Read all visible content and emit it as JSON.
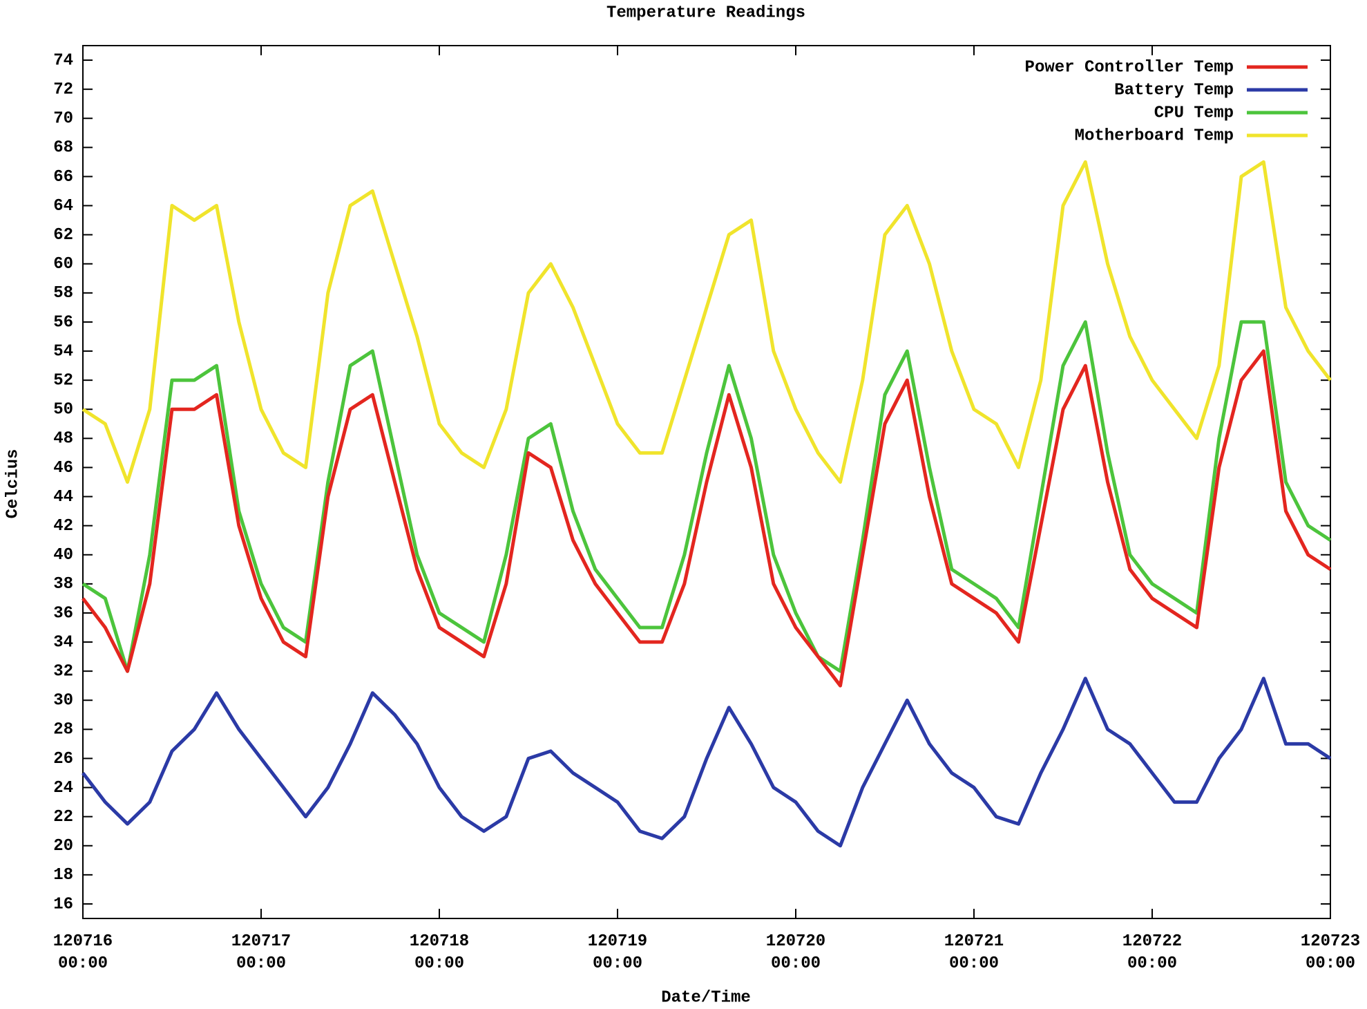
{
  "chart_data": {
    "type": "line",
    "title": "Temperature Readings",
    "x_label": "Date/Time",
    "y_label": "Celcius",
    "x": [
      "120716 00:00",
      "120716 03:00",
      "120716 06:00",
      "120716 09:00",
      "120716 12:00",
      "120716 15:00",
      "120716 18:00",
      "120716 21:00",
      "120717 00:00",
      "120717 03:00",
      "120717 06:00",
      "120717 09:00",
      "120717 12:00",
      "120717 15:00",
      "120717 18:00",
      "120717 21:00",
      "120718 00:00",
      "120718 03:00",
      "120718 06:00",
      "120718 09:00",
      "120718 12:00",
      "120718 15:00",
      "120718 18:00",
      "120718 21:00",
      "120719 00:00",
      "120719 03:00",
      "120719 06:00",
      "120719 09:00",
      "120719 12:00",
      "120719 15:00",
      "120719 18:00",
      "120719 21:00",
      "120720 00:00",
      "120720 03:00",
      "120720 06:00",
      "120720 09:00",
      "120720 12:00",
      "120720 15:00",
      "120720 18:00",
      "120720 21:00",
      "120721 00:00",
      "120721 03:00",
      "120721 06:00",
      "120721 09:00",
      "120721 12:00",
      "120721 15:00",
      "120721 18:00",
      "120721 21:00",
      "120722 00:00",
      "120722 03:00",
      "120722 06:00",
      "120722 09:00",
      "120722 12:00",
      "120722 15:00",
      "120722 18:00",
      "120722 21:00",
      "120723 00:00"
    ],
    "series": [
      {
        "name": "Power Controller Temp",
        "color": "#e3261f",
        "values": [
          37,
          35,
          32,
          38,
          50,
          50,
          51,
          42,
          37,
          34,
          33,
          44,
          50,
          51,
          45,
          39,
          35,
          34,
          33,
          38,
          47,
          46,
          41,
          38,
          36,
          34,
          34,
          38,
          45,
          51,
          46,
          38,
          35,
          33,
          31,
          40,
          49,
          52,
          44,
          38,
          37,
          36,
          34,
          42,
          50,
          53,
          45,
          39,
          37,
          36,
          35,
          46,
          52,
          54,
          43,
          40,
          39
        ]
      },
      {
        "name": "Battery Temp",
        "color": "#2b3aa6",
        "values": [
          25,
          23,
          21.5,
          23,
          26.5,
          28,
          30.5,
          28,
          26,
          24,
          22,
          24,
          27,
          30.5,
          29,
          27,
          24,
          22,
          21,
          22,
          26,
          26.5,
          25,
          24,
          23,
          21,
          20.5,
          22,
          26,
          29.5,
          27,
          24,
          23,
          21,
          20,
          24,
          27,
          30,
          27,
          25,
          24,
          22,
          21.5,
          25,
          28,
          31.5,
          28,
          27,
          25,
          23,
          23,
          26,
          28,
          31.5,
          27,
          27,
          26
        ]
      },
      {
        "name": "CPU Temp",
        "color": "#4cc43c",
        "values": [
          38,
          37,
          32,
          40,
          52,
          52,
          53,
          43,
          38,
          35,
          34,
          45,
          53,
          54,
          47,
          40,
          36,
          35,
          34,
          40,
          48,
          49,
          43,
          39,
          37,
          35,
          35,
          40,
          47,
          53,
          48,
          40,
          36,
          33,
          32,
          41,
          51,
          54,
          46,
          39,
          38,
          37,
          35,
          44,
          53,
          56,
          47,
          40,
          38,
          37,
          36,
          48,
          56,
          56,
          45,
          42,
          41
        ]
      },
      {
        "name": "Motherboard Temp",
        "color": "#f0e42c",
        "values": [
          50,
          49,
          45,
          50,
          64,
          63,
          64,
          56,
          50,
          47,
          46,
          58,
          64,
          65,
          60,
          55,
          49,
          47,
          46,
          50,
          58,
          60,
          57,
          53,
          49,
          47,
          47,
          52,
          57,
          62,
          63,
          54,
          50,
          47,
          45,
          52,
          62,
          64,
          60,
          54,
          50,
          49,
          46,
          52,
          64,
          67,
          60,
          55,
          52,
          50,
          48,
          53,
          66,
          67,
          57,
          54,
          52
        ]
      }
    ],
    "xlim": [
      "120716 00:00",
      "120723 00:00"
    ],
    "xticks": [
      "120716 00:00",
      "120717 00:00",
      "120718 00:00",
      "120719 00:00",
      "120720 00:00",
      "120721 00:00",
      "120722 00:00",
      "120723 00:00"
    ],
    "ylim": [
      15,
      75
    ],
    "yticks": [
      16,
      18,
      20,
      22,
      24,
      26,
      28,
      30,
      32,
      34,
      36,
      38,
      40,
      42,
      44,
      46,
      48,
      50,
      52,
      54,
      56,
      58,
      60,
      62,
      64,
      66,
      68,
      70,
      72,
      74
    ],
    "grid": false,
    "legend": "top-right"
  }
}
